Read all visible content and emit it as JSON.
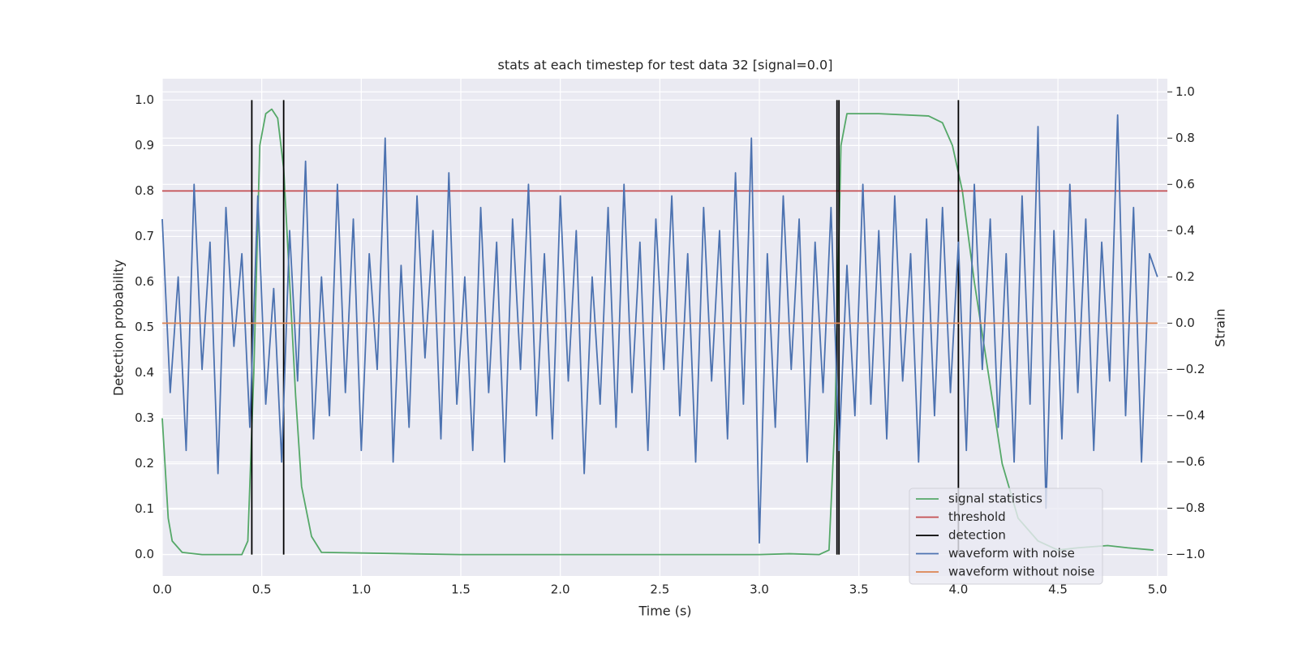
{
  "chart_data": {
    "type": "line",
    "title": "stats at each timestep for test data 32 [signal=0.0]",
    "xlabel": "Time (s)",
    "ylabel": "Detection probability",
    "y2label": "Strain",
    "xlim": [
      0,
      5.05
    ],
    "ylim": [
      -0.047,
      1.047
    ],
    "y2lim": [
      -1.093,
      1.057
    ],
    "xticks": [
      {
        "value": 0,
        "label": "0.0"
      },
      0.5,
      {
        "value": 1,
        "label": "1.0"
      },
      1.5,
      {
        "value": 2,
        "label": "2.0"
      },
      2.5,
      {
        "value": 3,
        "label": "3.0"
      },
      3.5,
      {
        "value": 4,
        "label": "4.0"
      },
      4.5,
      {
        "value": 5,
        "label": "5.0"
      }
    ],
    "yticks": [
      {
        "value": 0,
        "label": "0.0"
      },
      0.1,
      0.2,
      0.3,
      0.4,
      0.5,
      0.6,
      0.7,
      0.8,
      0.9,
      {
        "value": 1,
        "label": "1.0"
      }
    ],
    "y2ticks": [
      {
        "value": -1,
        "label": "−1.0"
      },
      {
        "value": -0.8,
        "label": "−0.8"
      },
      {
        "value": -0.6,
        "label": "−0.6"
      },
      {
        "value": -0.4,
        "label": "−0.4"
      },
      {
        "value": -0.2,
        "label": "−0.2"
      },
      {
        "value": 0,
        "label": "0.0"
      },
      0.2,
      0.4,
      0.6,
      0.8,
      {
        "value": 1,
        "label": "1.0"
      }
    ],
    "grid": true,
    "legend": "lower right",
    "series": [
      {
        "name": "signal statistics",
        "color": "#55a868",
        "axis": "y",
        "x": [
          0,
          0.03,
          0.05,
          0.1,
          0.2,
          0.4,
          0.43,
          0.46,
          0.49,
          0.52,
          0.55,
          0.58,
          0.61,
          0.64,
          0.67,
          0.7,
          0.75,
          0.8,
          1.5,
          3.0,
          3.15,
          3.3,
          3.35,
          3.38,
          3.41,
          3.44,
          3.6,
          3.85,
          3.92,
          3.97,
          4.02,
          4.08,
          4.15,
          4.22,
          4.3,
          4.4,
          4.5,
          4.6,
          4.75,
          4.85,
          4.98
        ],
        "values": [
          0.3,
          0.08,
          0.03,
          0.005,
          0,
          0,
          0.03,
          0.4,
          0.9,
          0.97,
          0.98,
          0.96,
          0.85,
          0.6,
          0.35,
          0.15,
          0.04,
          0.005,
          0,
          0,
          0.002,
          0,
          0.01,
          0.3,
          0.9,
          0.97,
          0.97,
          0.965,
          0.95,
          0.9,
          0.8,
          0.6,
          0.4,
          0.2,
          0.08,
          0.03,
          0.01,
          0.015,
          0.02,
          0.015,
          0.01
        ]
      },
      {
        "name": "threshold",
        "color": "#c44e52",
        "axis": "y",
        "x": [
          0,
          5.05
        ],
        "values": [
          0.8,
          0.8
        ]
      },
      {
        "name": "detection",
        "color": "#000000",
        "axis": "y",
        "type": "vline",
        "x": [
          0.45,
          0.61,
          3.39,
          3.4,
          4.0
        ],
        "values": [
          1,
          1,
          1,
          1,
          1
        ]
      },
      {
        "name": "waveform with noise",
        "color": "#4c72b0",
        "axis": "y2",
        "x": [
          0,
          0.04,
          0.08,
          0.12,
          0.16,
          0.2,
          0.24,
          0.28,
          0.32,
          0.36,
          0.4,
          0.44,
          0.48,
          0.52,
          0.56,
          0.6,
          0.64,
          0.68,
          0.72,
          0.76,
          0.8,
          0.84,
          0.88,
          0.92,
          0.96,
          1.0,
          1.04,
          1.08,
          1.12,
          1.16,
          1.2,
          1.24,
          1.28,
          1.32,
          1.36,
          1.4,
          1.44,
          1.48,
          1.52,
          1.56,
          1.6,
          1.64,
          1.68,
          1.72,
          1.76,
          1.8,
          1.84,
          1.88,
          1.92,
          1.96,
          2.0,
          2.04,
          2.08,
          2.12,
          2.16,
          2.2,
          2.24,
          2.28,
          2.32,
          2.36,
          2.4,
          2.44,
          2.48,
          2.52,
          2.56,
          2.6,
          2.64,
          2.68,
          2.72,
          2.76,
          2.8,
          2.84,
          2.88,
          2.92,
          2.96,
          3.0,
          3.04,
          3.08,
          3.12,
          3.16,
          3.2,
          3.24,
          3.28,
          3.32,
          3.36,
          3.4,
          3.44,
          3.48,
          3.52,
          3.56,
          3.6,
          3.64,
          3.68,
          3.72,
          3.76,
          3.8,
          3.84,
          3.88,
          3.92,
          3.96,
          4.0,
          4.04,
          4.08,
          4.12,
          4.16,
          4.2,
          4.24,
          4.28,
          4.32,
          4.36,
          4.4,
          4.44,
          4.48,
          4.52,
          4.56,
          4.6,
          4.64,
          4.68,
          4.72,
          4.76,
          4.8,
          4.84,
          4.88,
          4.92,
          4.96,
          5.0
        ],
        "values": [
          0.45,
          -0.3,
          0.2,
          -0.55,
          0.6,
          -0.2,
          0.35,
          -0.65,
          0.5,
          -0.1,
          0.3,
          -0.45,
          0.55,
          -0.35,
          0.15,
          -0.6,
          0.4,
          -0.25,
          0.7,
          -0.5,
          0.2,
          -0.4,
          0.6,
          -0.3,
          0.45,
          -0.55,
          0.3,
          -0.2,
          0.8,
          -0.6,
          0.25,
          -0.45,
          0.55,
          -0.15,
          0.4,
          -0.5,
          0.65,
          -0.35,
          0.2,
          -0.55,
          0.5,
          -0.3,
          0.35,
          -0.6,
          0.45,
          -0.2,
          0.6,
          -0.4,
          0.3,
          -0.5,
          0.55,
          -0.25,
          0.4,
          -0.65,
          0.2,
          -0.35,
          0.5,
          -0.45,
          0.6,
          -0.3,
          0.35,
          -0.55,
          0.45,
          -0.2,
          0.55,
          -0.4,
          0.3,
          -0.6,
          0.5,
          -0.25,
          0.4,
          -0.5,
          0.65,
          -0.35,
          0.8,
          -0.95,
          0.3,
          -0.45,
          0.55,
          -0.2,
          0.45,
          -0.6,
          0.35,
          -0.3,
          0.5,
          -0.55,
          0.25,
          -0.4,
          0.6,
          -0.35,
          0.4,
          -0.5,
          0.55,
          -0.25,
          0.3,
          -0.6,
          0.45,
          -0.4,
          0.5,
          -0.3,
          0.35,
          -0.55,
          0.6,
          -0.2,
          0.45,
          -0.45,
          0.3,
          -0.6,
          0.55,
          -0.35,
          0.85,
          -0.8,
          0.4,
          -0.5,
          0.6,
          -0.3,
          0.45,
          -0.55,
          0.35,
          -0.25,
          0.9,
          -0.4,
          0.5,
          -0.6,
          0.3,
          0.2
        ]
      },
      {
        "name": "waveform without noise",
        "color": "#dd8452",
        "axis": "y2",
        "x": [
          0,
          5
        ],
        "values": [
          0,
          0
        ]
      }
    ]
  }
}
